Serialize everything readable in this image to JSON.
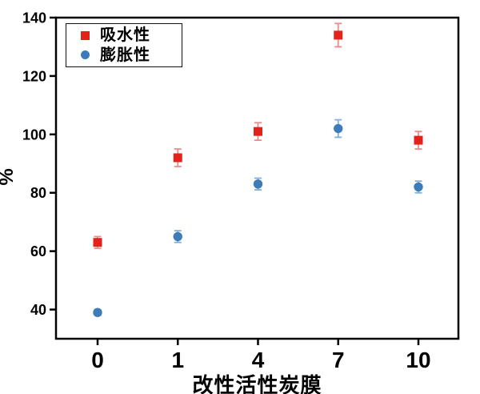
{
  "chart_data": {
    "type": "scatter",
    "title": "",
    "xlabel": "改性活性炭膜",
    "ylabel": "%",
    "categories": [
      "0",
      "1",
      "4",
      "7",
      "10"
    ],
    "series": [
      {
        "name": "吸水性",
        "marker": "square",
        "color": "#e3221c",
        "errorbar_color": "#f08a88",
        "values": [
          63,
          92,
          101,
          134,
          98
        ],
        "errors": [
          2,
          3,
          3,
          4,
          3
        ]
      },
      {
        "name": "膨胀性",
        "marker": "circle",
        "color": "#3d7cb8",
        "errorbar_color": "#82afd8",
        "values": [
          39,
          65,
          83,
          102,
          82
        ],
        "errors": [
          1,
          2,
          2,
          3,
          2
        ]
      }
    ],
    "ylim": [
      30,
      140
    ],
    "yticks": [
      40,
      60,
      80,
      100,
      120,
      140
    ],
    "grid": false,
    "legend_position": "top-left",
    "axis_color": "#000000",
    "background": "#ffffff"
  }
}
